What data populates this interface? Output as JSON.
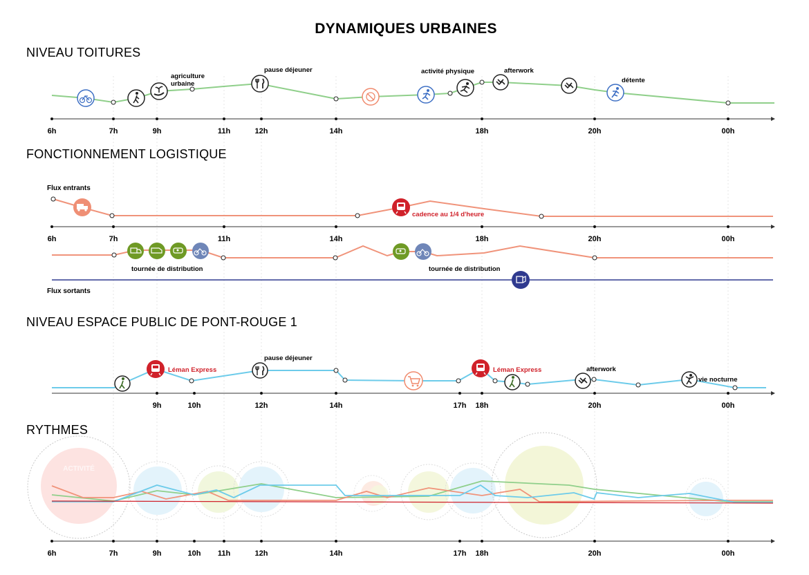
{
  "title": "DYNAMIQUES URBAINES",
  "colors": {
    "green": "#8fcf8a",
    "salmon": "#f0937a",
    "blue": "#6ccbea",
    "navy": "#2f3a8f",
    "red": "#d0212a",
    "olive": "#6f9a25",
    "slate": "#6f86b8",
    "icon_blue": "#3d6fc4",
    "icon_orange": "#f08a6d",
    "axis": "#333333",
    "vgrid": "#dddddd"
  },
  "sections": {
    "toitures": {
      "title": "NIVEAU TOITURES",
      "ticks": [
        "6h",
        "7h",
        "9h",
        "11h",
        "12h",
        "14h",
        "18h",
        "20h",
        "00h"
      ],
      "annotations": [
        {
          "key": "agriculture",
          "text": "agriculture"
        },
        {
          "key": "urbaine",
          "text": "urbaine"
        },
        {
          "key": "pause",
          "text": "pause déjeuner"
        },
        {
          "key": "activite",
          "text": "activité physique"
        },
        {
          "key": "afterwork",
          "text": "afterwork"
        },
        {
          "key": "detente",
          "text": "détente"
        }
      ],
      "icons": [
        "bicycle-icon",
        "walker-icon",
        "plant-hand-icon",
        "cutlery-icon",
        "no-food-icon",
        "runner-icon",
        "jogger-icon",
        "handshake-icon",
        "handshake-icon",
        "yoga-icon"
      ]
    },
    "logistique": {
      "title": "FONCTIONNEMENT LOGISTIQUE",
      "flux_entrants": "Flux entrants",
      "flux_sortants": "Flux sortants",
      "ticks": [
        "6h",
        "7h",
        "11h",
        "14h",
        "18h",
        "20h",
        "00h"
      ],
      "cadence": "cadence au 1/4 d'heure",
      "tournee_1": "tournée de distribution",
      "tournee_2": "tournée de distribution",
      "icons": [
        "truck-icon",
        "train-icon",
        "van-icon",
        "delivery-van-icon",
        "electric-car-icon",
        "cargo-bike-icon",
        "parcel-icon"
      ]
    },
    "espace_public": {
      "title": "NIVEAU ESPACE PUBLIC DE PONT-ROUGE 1",
      "ticks": [
        "9h",
        "10h",
        "12h",
        "14h",
        "17h",
        "18h",
        "20h",
        "00h"
      ],
      "leman_1": "Léman Express",
      "leman_2": "Léman Express",
      "pause": "pause déjeuner",
      "afterwork": "afterwork",
      "vie_nocturne": "vie nocturne",
      "icons": [
        "walker-icon",
        "train-icon",
        "cutlery-icon",
        "shopping-cart-icon",
        "train-icon",
        "walker-icon",
        "handshake-icon",
        "dancer-icon"
      ]
    },
    "rythmes": {
      "title": "RYTHMES",
      "ticks": [
        "6h",
        "7h",
        "9h",
        "10h",
        "11h",
        "12h",
        "14h",
        "17h",
        "18h",
        "20h",
        "00h"
      ],
      "bubble_label": "ACTIVITÉ"
    }
  }
}
